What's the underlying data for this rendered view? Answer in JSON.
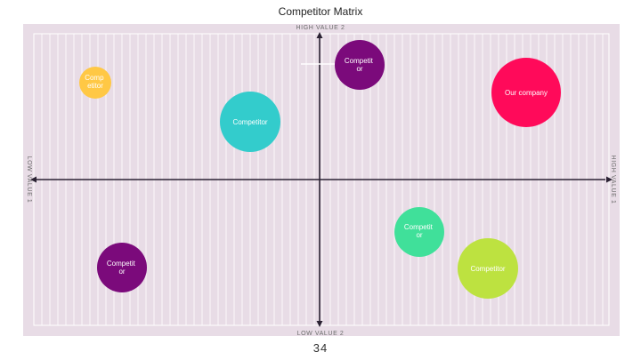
{
  "slide": {
    "title": "Competitor Matrix",
    "page_number": "34"
  },
  "axes": {
    "top_label": "HIGH VALUE 2",
    "bottom_label": "LOW VALUE 2",
    "left_label": "LOW VALUE 1",
    "right_label": "HIGH VALUE 1"
  },
  "colors": {
    "panel_background": "#e8dce6",
    "grid_line": "#ffffff",
    "axis_line": "#2b2233"
  },
  "bubbles": [
    {
      "id": "competitor-yellow",
      "lines": [
        "Comp",
        "etitor"
      ],
      "color": "#ffc845"
    },
    {
      "id": "competitor-teal",
      "lines": [
        "Competitor"
      ],
      "color": "#33cccc"
    },
    {
      "id": "competitor-purple-top",
      "lines": [
        "Competit",
        "or"
      ],
      "color": "#7b0a7b"
    },
    {
      "id": "our-company",
      "lines": [
        "Our company"
      ],
      "color": "#ff0a5a"
    },
    {
      "id": "competitor-green",
      "lines": [
        "Competit",
        "or"
      ],
      "color": "#40e09a"
    },
    {
      "id": "competitor-lime",
      "lines": [
        "Competitor"
      ],
      "color": "#bde240"
    },
    {
      "id": "competitor-purple-bottom",
      "lines": [
        "Competit",
        "or"
      ],
      "color": "#7b0a7b"
    }
  ]
}
